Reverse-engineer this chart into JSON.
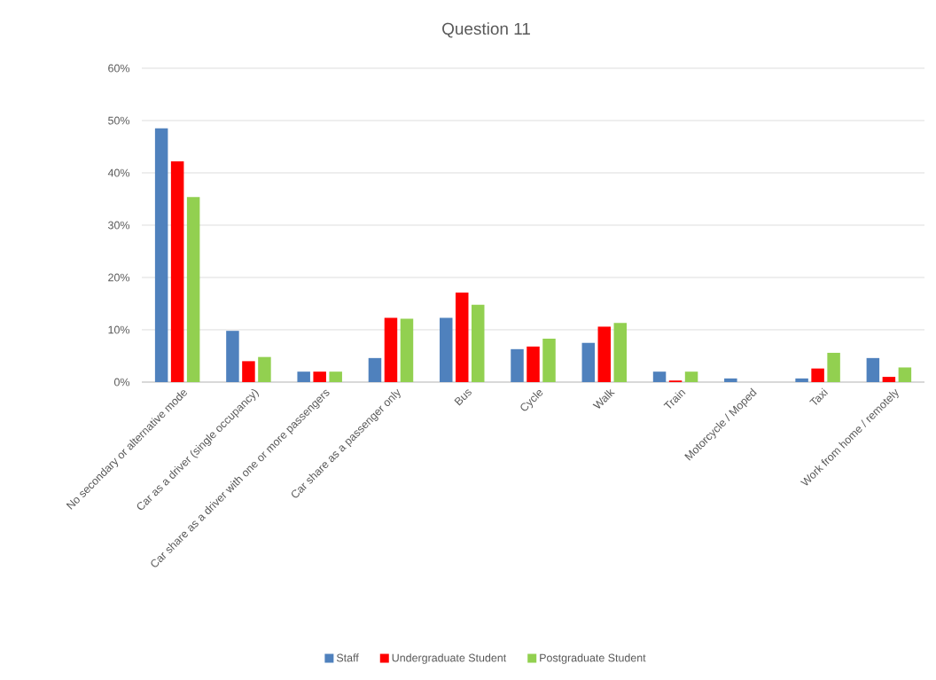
{
  "chart_data": {
    "type": "bar",
    "title": "Question 11",
    "categories": [
      "No secondary or alternative mode",
      "Car as a driver (single occupancy)",
      "Car share as a driver with one or more passengers",
      "Car share as a passenger only",
      "Bus",
      "Cycle",
      "Walk",
      "Train",
      "Motorcycle / Moped",
      "Taxi",
      "Work from home / remotely"
    ],
    "series": [
      {
        "name": "Staff",
        "color": "#4f81bd",
        "values": [
          48.5,
          9.8,
          2.0,
          4.6,
          12.3,
          6.3,
          7.5,
          2.0,
          0.7,
          0.7,
          4.6
        ]
      },
      {
        "name": "Undergraduate Student",
        "color": "#ff0000",
        "values": [
          42.2,
          4.0,
          2.0,
          12.3,
          17.1,
          6.8,
          10.6,
          0.3,
          0,
          2.6,
          1.0
        ]
      },
      {
        "name": "Postgraduate Student",
        "color": "#92d050",
        "values": [
          35.4,
          4.8,
          2.0,
          12.1,
          14.8,
          8.3,
          11.3,
          2.0,
          0,
          5.6,
          2.8
        ]
      }
    ],
    "ylim": [
      0,
      60
    ],
    "yticks": [
      {
        "value": 0,
        "label": "0%"
      },
      {
        "value": 10,
        "label": "10%"
      },
      {
        "value": 20,
        "label": "20%"
      },
      {
        "value": 30,
        "label": "30%"
      },
      {
        "value": 40,
        "label": "40%"
      },
      {
        "value": 50,
        "label": "50%"
      },
      {
        "value": 60,
        "label": "60%"
      }
    ],
    "grid": "y",
    "legend": "bottom"
  }
}
